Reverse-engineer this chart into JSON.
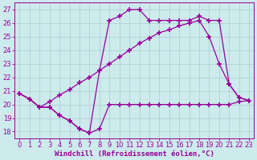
{
  "background_color": "#cdeaed",
  "grid_color": "#aacccc",
  "line_color": "#990099",
  "marker": "+",
  "markersize": 4,
  "linewidth": 0.9,
  "markeredgewidth": 1.2,
  "xlabel": "Windchill (Refroidissement éolien,°C)",
  "xlabel_fontsize": 6.5,
  "tick_fontsize": 6.0,
  "xlim": [
    -0.5,
    23.5
  ],
  "ylim": [
    17.5,
    27.5
  ],
  "yticks": [
    18,
    19,
    20,
    21,
    22,
    23,
    24,
    25,
    26,
    27
  ],
  "xticks": [
    0,
    1,
    2,
    3,
    4,
    5,
    6,
    7,
    8,
    9,
    10,
    11,
    12,
    13,
    14,
    15,
    16,
    17,
    18,
    19,
    20,
    21,
    22,
    23
  ],
  "series1_x": [
    0,
    1,
    2,
    3,
    4,
    5,
    6,
    7,
    8,
    9,
    10,
    11,
    12,
    13,
    14,
    15,
    16,
    17,
    18,
    19,
    20,
    21,
    22,
    23
  ],
  "series1_y": [
    20.8,
    20.4,
    19.8,
    19.8,
    19.2,
    18.8,
    18.2,
    17.9,
    18.2,
    20.0,
    20.0,
    20.0,
    20.0,
    20.0,
    20.0,
    20.0,
    20.0,
    20.0,
    20.0,
    20.0,
    20.0,
    20.0,
    20.2,
    20.3
  ],
  "series2_x": [
    0,
    1,
    2,
    3,
    4,
    5,
    6,
    7,
    8,
    9,
    10,
    11,
    12,
    13,
    14,
    15,
    16,
    17,
    18,
    19,
    20,
    21,
    22,
    23
  ],
  "series2_y": [
    20.8,
    20.4,
    19.8,
    20.2,
    20.7,
    21.1,
    21.6,
    22.0,
    22.5,
    23.0,
    23.5,
    24.0,
    24.5,
    24.9,
    25.3,
    25.5,
    25.8,
    26.0,
    26.2,
    25.0,
    23.0,
    21.5,
    20.5,
    20.3
  ],
  "series3_x": [
    0,
    1,
    2,
    3,
    4,
    5,
    6,
    7,
    8,
    9,
    10,
    11,
    12,
    13,
    14,
    15,
    16,
    17,
    18,
    19,
    20,
    21,
    22,
    23
  ],
  "series3_y": [
    20.8,
    20.4,
    19.8,
    19.8,
    19.2,
    18.8,
    18.2,
    17.9,
    22.5,
    26.2,
    26.5,
    27.0,
    27.0,
    26.2,
    26.2,
    26.2,
    26.2,
    26.2,
    26.5,
    26.2,
    26.2,
    21.5,
    20.5,
    20.3
  ]
}
